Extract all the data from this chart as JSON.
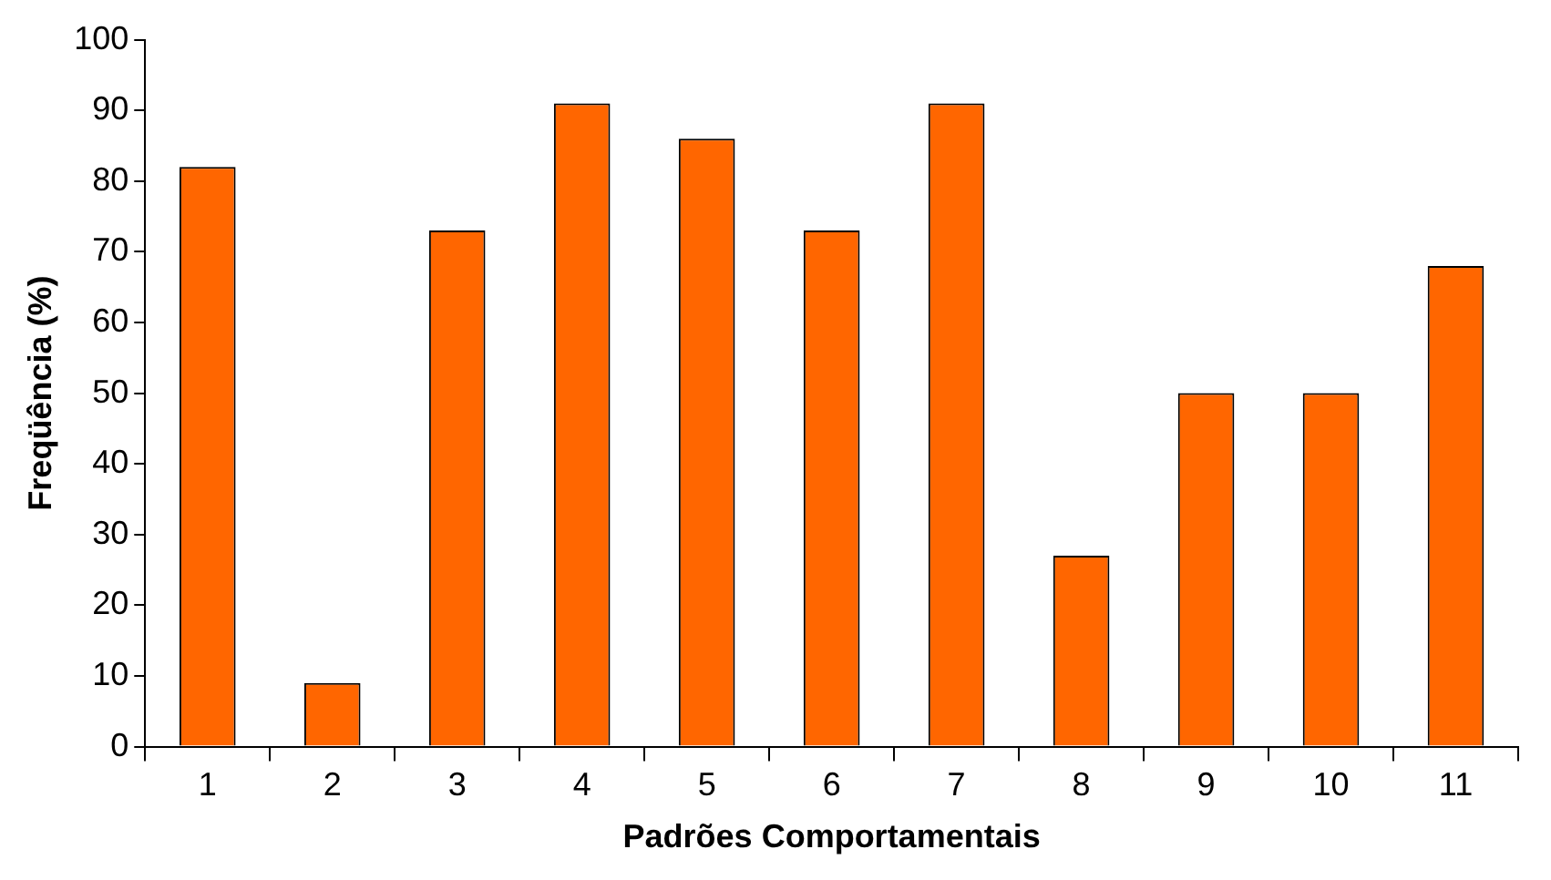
{
  "chart_data": {
    "type": "bar",
    "xlabel": "Padrões Comportamentais",
    "ylabel": "Freqüência (%)",
    "categories": [
      "1",
      "2",
      "3",
      "4",
      "5",
      "6",
      "7",
      "8",
      "9",
      "10",
      "11"
    ],
    "values": [
      82,
      9,
      73,
      91,
      86,
      73,
      91,
      27,
      50,
      50,
      68
    ],
    "color": "#ff6600",
    "ylim": [
      0,
      100
    ],
    "yticks": [
      0,
      10,
      20,
      30,
      40,
      50,
      60,
      70,
      80,
      90,
      100
    ],
    "grid": false,
    "legend": false
  }
}
